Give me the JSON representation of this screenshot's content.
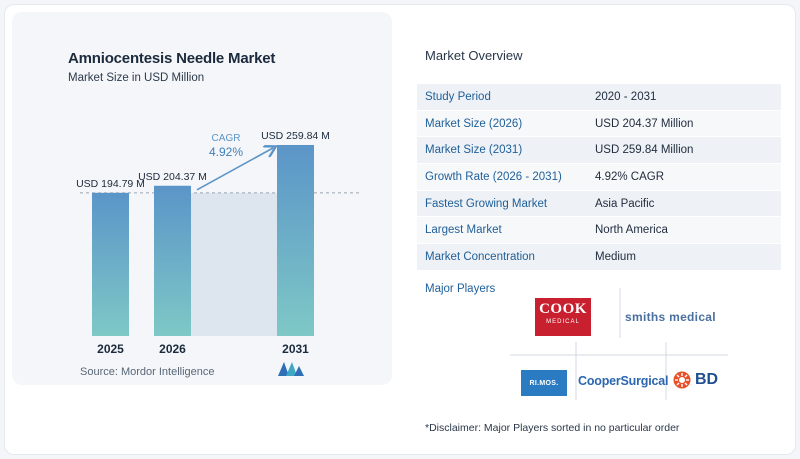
{
  "chart_data": {
    "type": "bar",
    "title": "Amniocentesis Needle Market",
    "subtitle": "Market Size in USD Million",
    "categories": [
      "2025",
      "2026",
      "2031"
    ],
    "values": [
      194.79,
      204.37,
      259.84
    ],
    "value_labels": [
      "USD 194.79 M",
      "USD 204.37 M",
      "USD 259.84 M"
    ],
    "cagr_label": "CAGR",
    "cagr_value": "4.92%",
    "ylim": [
      0,
      259.84
    ],
    "grid": false,
    "colors": {
      "bar_top": "#5b95c8",
      "bar_bottom": "#7ec8c6",
      "band": "#dde6ef"
    }
  },
  "source": "Source:  Mordor Intelligence",
  "overview": {
    "title": "Market Overview",
    "rows": [
      {
        "label": "Study Period",
        "value": "2020 - 2031"
      },
      {
        "label": "Market Size (2026)",
        "value": "USD 204.37 Million"
      },
      {
        "label": "Market Size (2031)",
        "value": "USD 259.84 Million"
      },
      {
        "label": "Growth Rate (2026 - 2031)",
        "value": "4.92% CAGR"
      },
      {
        "label": "Fastest Growing Market",
        "value": "Asia Pacific"
      },
      {
        "label": "Largest Market",
        "value": "North America"
      },
      {
        "label": "Market Concentration",
        "value": "Medium"
      }
    ]
  },
  "major_players": {
    "title": "Major Players",
    "cook_line1": "COOK",
    "cook_line2": "MEDICAL",
    "smiths": "smiths medical",
    "rimos": "RI.MOS.",
    "cooper": "CooperSurgical",
    "bd": "BD"
  },
  "disclaimer": "*Disclaimer: Major Players sorted in no particular order"
}
